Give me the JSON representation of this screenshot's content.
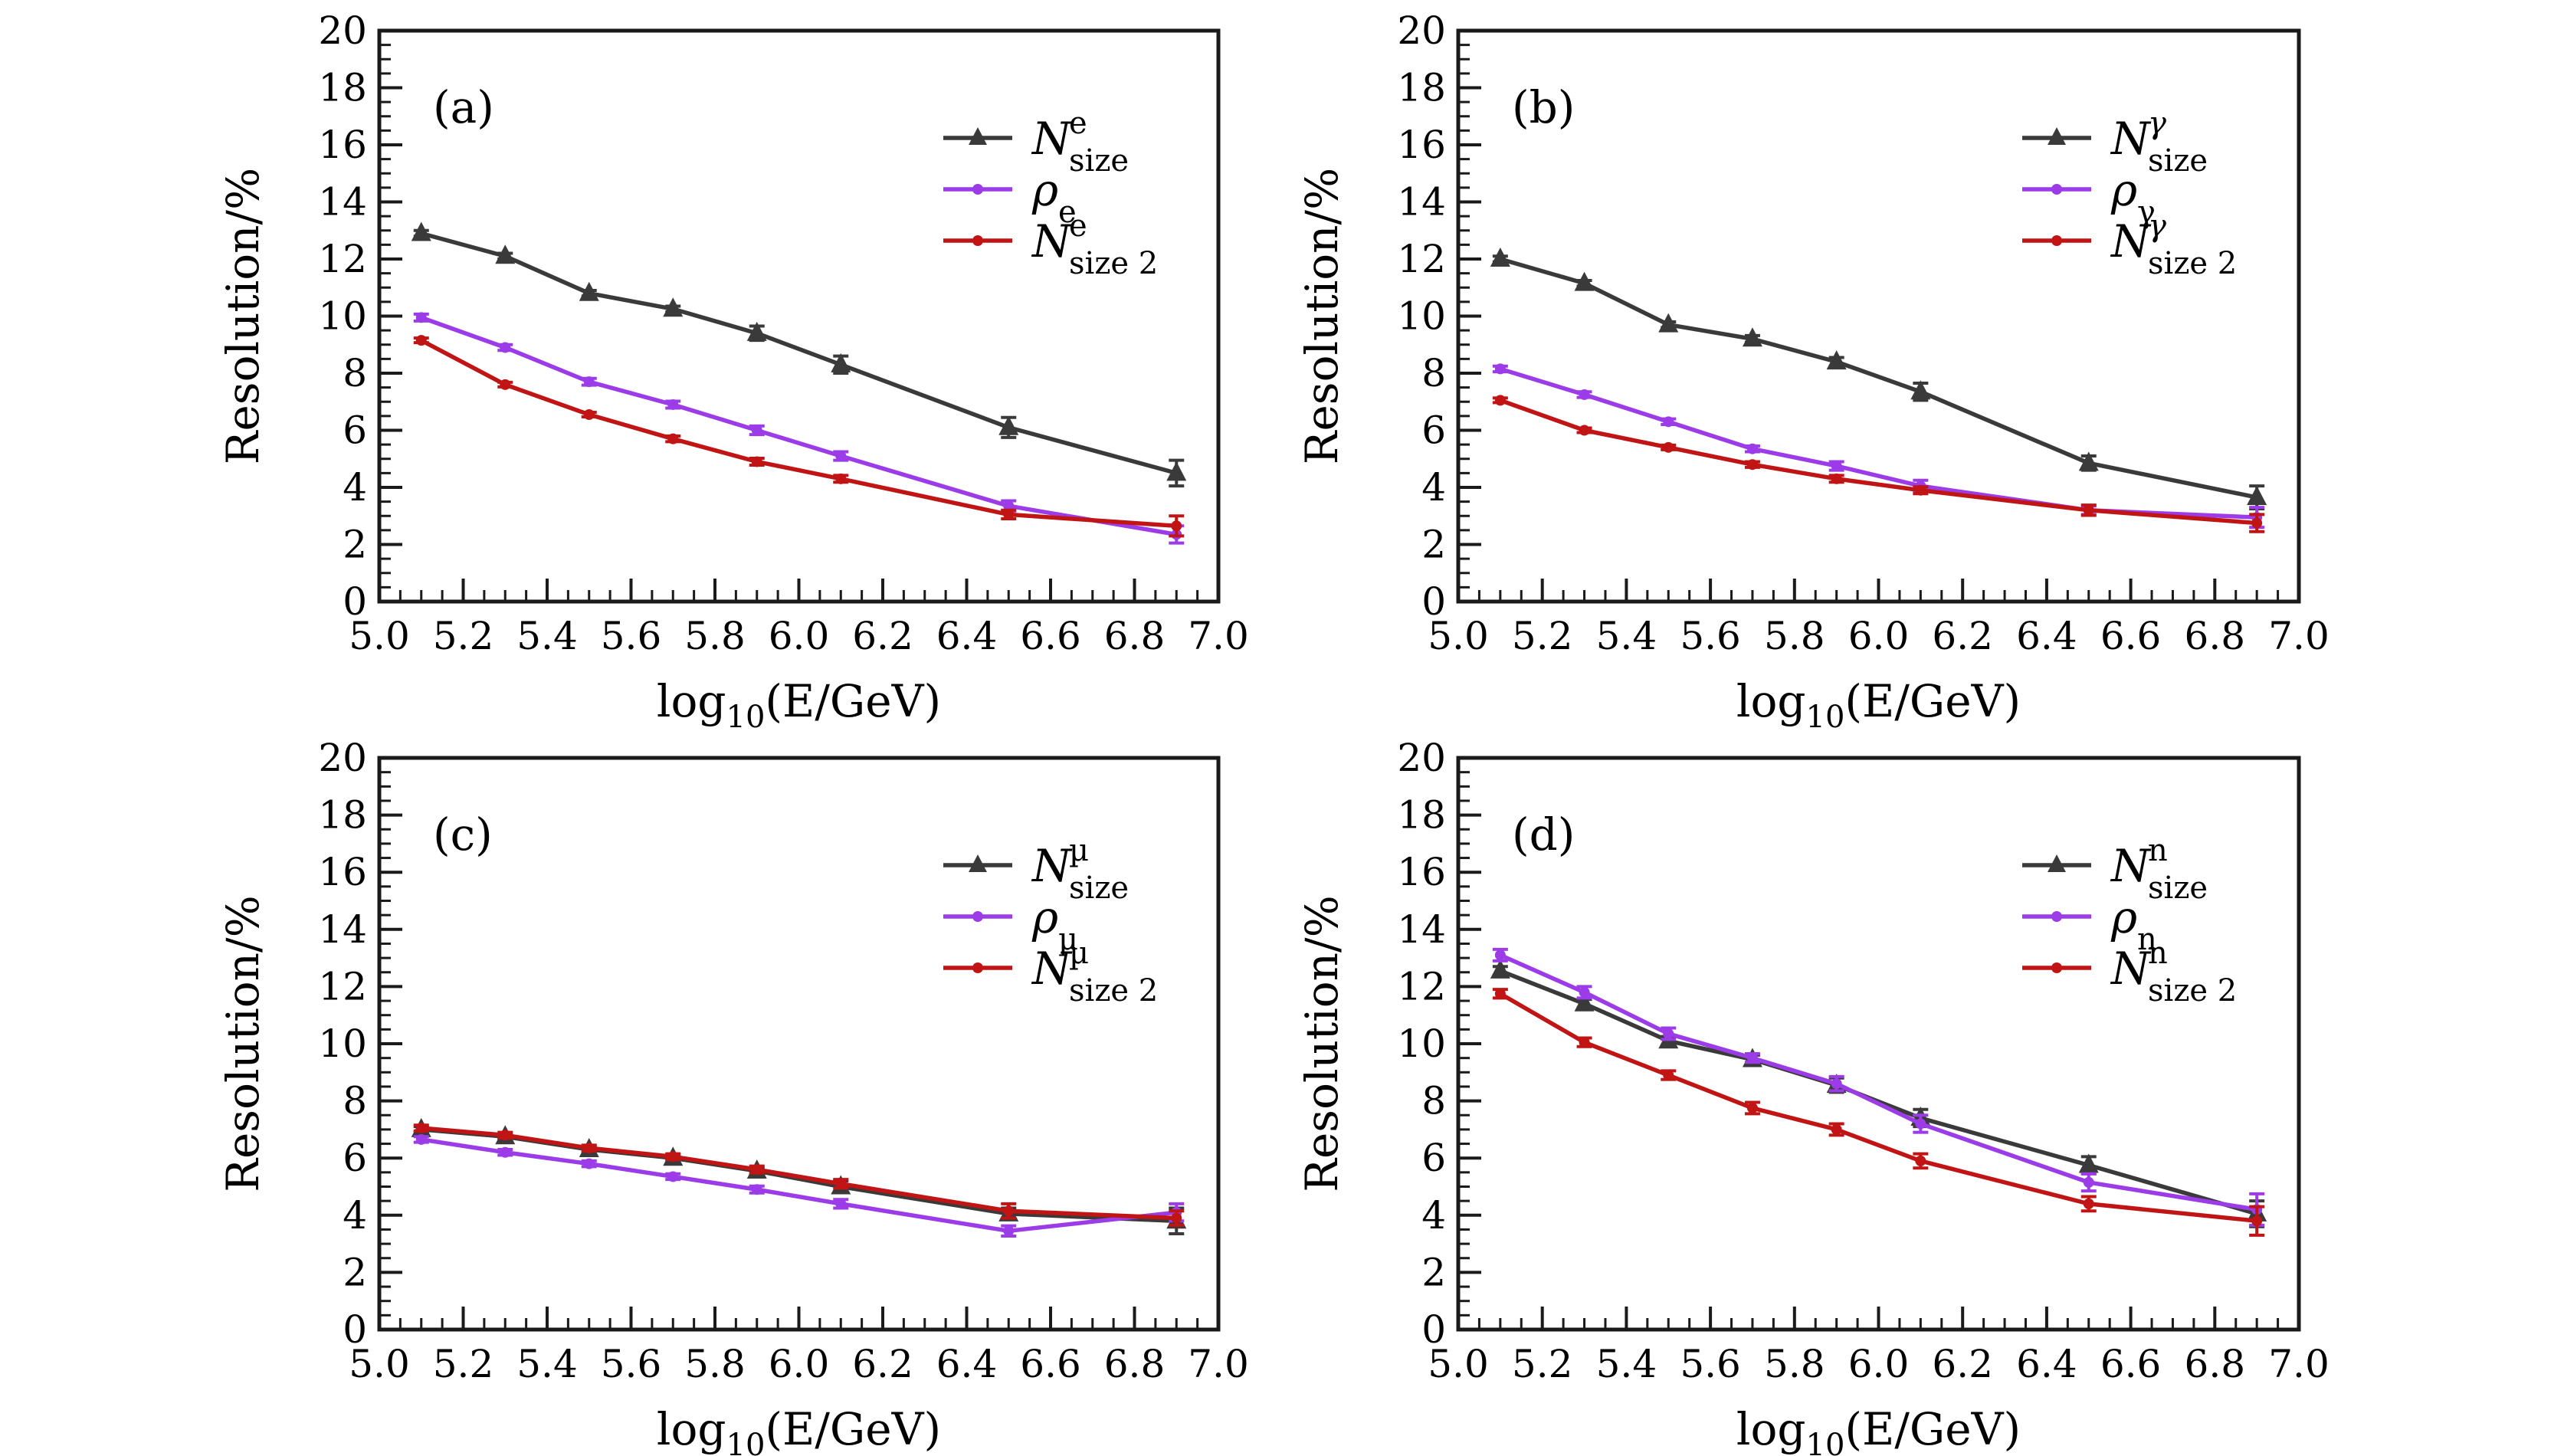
{
  "figure": {
    "background": "#ffffff",
    "axis_color": "#1a1a1a",
    "series_colors": {
      "nsize": "#3a3a3a",
      "rho": "#9c3ce8",
      "nsize2": "#c11414"
    }
  },
  "chart_data": {
    "type": "line",
    "xlabel": {
      "log": "log",
      "log_sub": "10",
      "open": "(",
      "variable": "E",
      "close": "/GeV)"
    },
    "ylabel": "Resolution/%",
    "xlim": [
      5.0,
      7.0
    ],
    "ylim": [
      0,
      20
    ],
    "x_major_step": 0.2,
    "x_minor_step": 0.05,
    "y_major_step": 2,
    "y_minor_step": 0.5,
    "grid": "off",
    "legend_position": "upper-right-inside",
    "x": [
      5.1,
      5.3,
      5.5,
      5.7,
      5.9,
      6.1,
      6.5,
      6.9
    ],
    "panels": [
      {
        "id": "a",
        "label": "(a)",
        "series": [
          {
            "key": "nsize",
            "color": "#3a3a3a",
            "marker": "triangle",
            "legend": {
              "base": "N",
              "sup": "e",
              "sub": "size"
            },
            "y": [
              12.9,
              12.1,
              10.8,
              10.25,
              9.4,
              8.3,
              6.1,
              4.5
            ],
            "yerr": [
              0.1,
              0.1,
              0.1,
              0.1,
              0.25,
              0.3,
              0.35,
              0.45
            ]
          },
          {
            "key": "rho",
            "color": "#9c3ce8",
            "marker": "dot",
            "legend": {
              "base": "ρ",
              "sub": "e"
            },
            "y": [
              9.95,
              8.9,
              7.7,
              6.9,
              6.0,
              5.1,
              3.35,
              2.35
            ],
            "yerr": [
              0.12,
              0.1,
              0.12,
              0.12,
              0.15,
              0.15,
              0.18,
              0.3
            ]
          },
          {
            "key": "nsize2",
            "color": "#c11414",
            "marker": "dot",
            "legend": {
              "base": "N",
              "sup": "e",
              "sub": "size 2"
            },
            "y": [
              9.15,
              7.6,
              6.55,
              5.7,
              4.9,
              4.3,
              3.05,
              2.65
            ],
            "yerr": [
              0.08,
              0.08,
              0.08,
              0.1,
              0.12,
              0.12,
              0.15,
              0.35
            ]
          }
        ]
      },
      {
        "id": "b",
        "label": "(b)",
        "series": [
          {
            "key": "nsize",
            "color": "#3a3a3a",
            "marker": "triangle",
            "legend": {
              "base": "N",
              "sup": "γ",
              "sub": "size"
            },
            "y": [
              12.0,
              11.15,
              9.7,
              9.2,
              8.4,
              7.35,
              4.85,
              3.65
            ],
            "yerr": [
              0.1,
              0.1,
              0.1,
              0.12,
              0.15,
              0.3,
              0.25,
              0.4
            ]
          },
          {
            "key": "rho",
            "color": "#9c3ce8",
            "marker": "dot",
            "legend": {
              "base": "ρ",
              "sub": "γ"
            },
            "y": [
              8.15,
              7.25,
              6.3,
              5.35,
              4.75,
              4.05,
              3.2,
              2.95
            ],
            "yerr": [
              0.1,
              0.1,
              0.1,
              0.1,
              0.15,
              0.2,
              0.15,
              0.35
            ]
          },
          {
            "key": "nsize2",
            "color": "#c11414",
            "marker": "dot",
            "legend": {
              "base": "N",
              "sup": "γ",
              "sub": "size 2"
            },
            "y": [
              7.05,
              6.0,
              5.4,
              4.8,
              4.3,
              3.9,
              3.2,
              2.75
            ],
            "yerr": [
              0.08,
              0.08,
              0.08,
              0.1,
              0.12,
              0.12,
              0.18,
              0.3
            ]
          }
        ]
      },
      {
        "id": "c",
        "label": "(c)",
        "series": [
          {
            "key": "nsize",
            "color": "#3a3a3a",
            "marker": "triangle",
            "legend": {
              "base": "N",
              "sup": "µ",
              "sub": "size"
            },
            "y": [
              7.0,
              6.75,
              6.3,
              6.0,
              5.55,
              5.0,
              4.05,
              3.8
            ],
            "yerr": [
              0.1,
              0.1,
              0.1,
              0.1,
              0.12,
              0.2,
              0.2,
              0.45
            ]
          },
          {
            "key": "rho",
            "color": "#9c3ce8",
            "marker": "dot",
            "legend": {
              "base": "ρ",
              "sub": "µ"
            },
            "y": [
              6.65,
              6.2,
              5.8,
              5.35,
              4.9,
              4.4,
              3.45,
              4.1
            ],
            "yerr": [
              0.1,
              0.1,
              0.1,
              0.1,
              0.12,
              0.15,
              0.18,
              0.3
            ]
          },
          {
            "key": "nsize2",
            "color": "#c11414",
            "marker": "dot",
            "legend": {
              "base": "N",
              "sup": "µ",
              "sub": "size 2"
            },
            "y": [
              7.05,
              6.8,
              6.35,
              6.05,
              5.6,
              5.1,
              4.15,
              3.9
            ],
            "yerr": [
              0.1,
              0.1,
              0.1,
              0.1,
              0.12,
              0.15,
              0.25,
              0.25
            ]
          }
        ]
      },
      {
        "id": "d",
        "label": "(d)",
        "series": [
          {
            "key": "nsize",
            "color": "#3a3a3a",
            "marker": "triangle",
            "legend": {
              "base": "N",
              "sup": "n",
              "sub": "size"
            },
            "y": [
              12.55,
              11.4,
              10.1,
              9.45,
              8.55,
              7.4,
              5.75,
              4.05
            ],
            "yerr": [
              0.15,
              0.15,
              0.15,
              0.15,
              0.25,
              0.3,
              0.3,
              0.45
            ]
          },
          {
            "key": "rho",
            "color": "#9c3ce8",
            "marker": "dot",
            "legend": {
              "base": "ρ",
              "sub": "n"
            },
            "y": [
              13.1,
              11.8,
              10.35,
              9.5,
              8.6,
              7.2,
              5.15,
              4.2
            ],
            "yerr": [
              0.2,
              0.2,
              0.2,
              0.15,
              0.25,
              0.3,
              0.3,
              0.55
            ]
          },
          {
            "key": "nsize2",
            "color": "#c11414",
            "marker": "dot",
            "legend": {
              "base": "N",
              "sup": "n",
              "sub": "size 2"
            },
            "y": [
              11.75,
              10.05,
              8.9,
              7.75,
              7.0,
              5.9,
              4.4,
              3.8
            ],
            "yerr": [
              0.15,
              0.15,
              0.15,
              0.2,
              0.2,
              0.25,
              0.25,
              0.5
            ]
          }
        ]
      }
    ]
  }
}
